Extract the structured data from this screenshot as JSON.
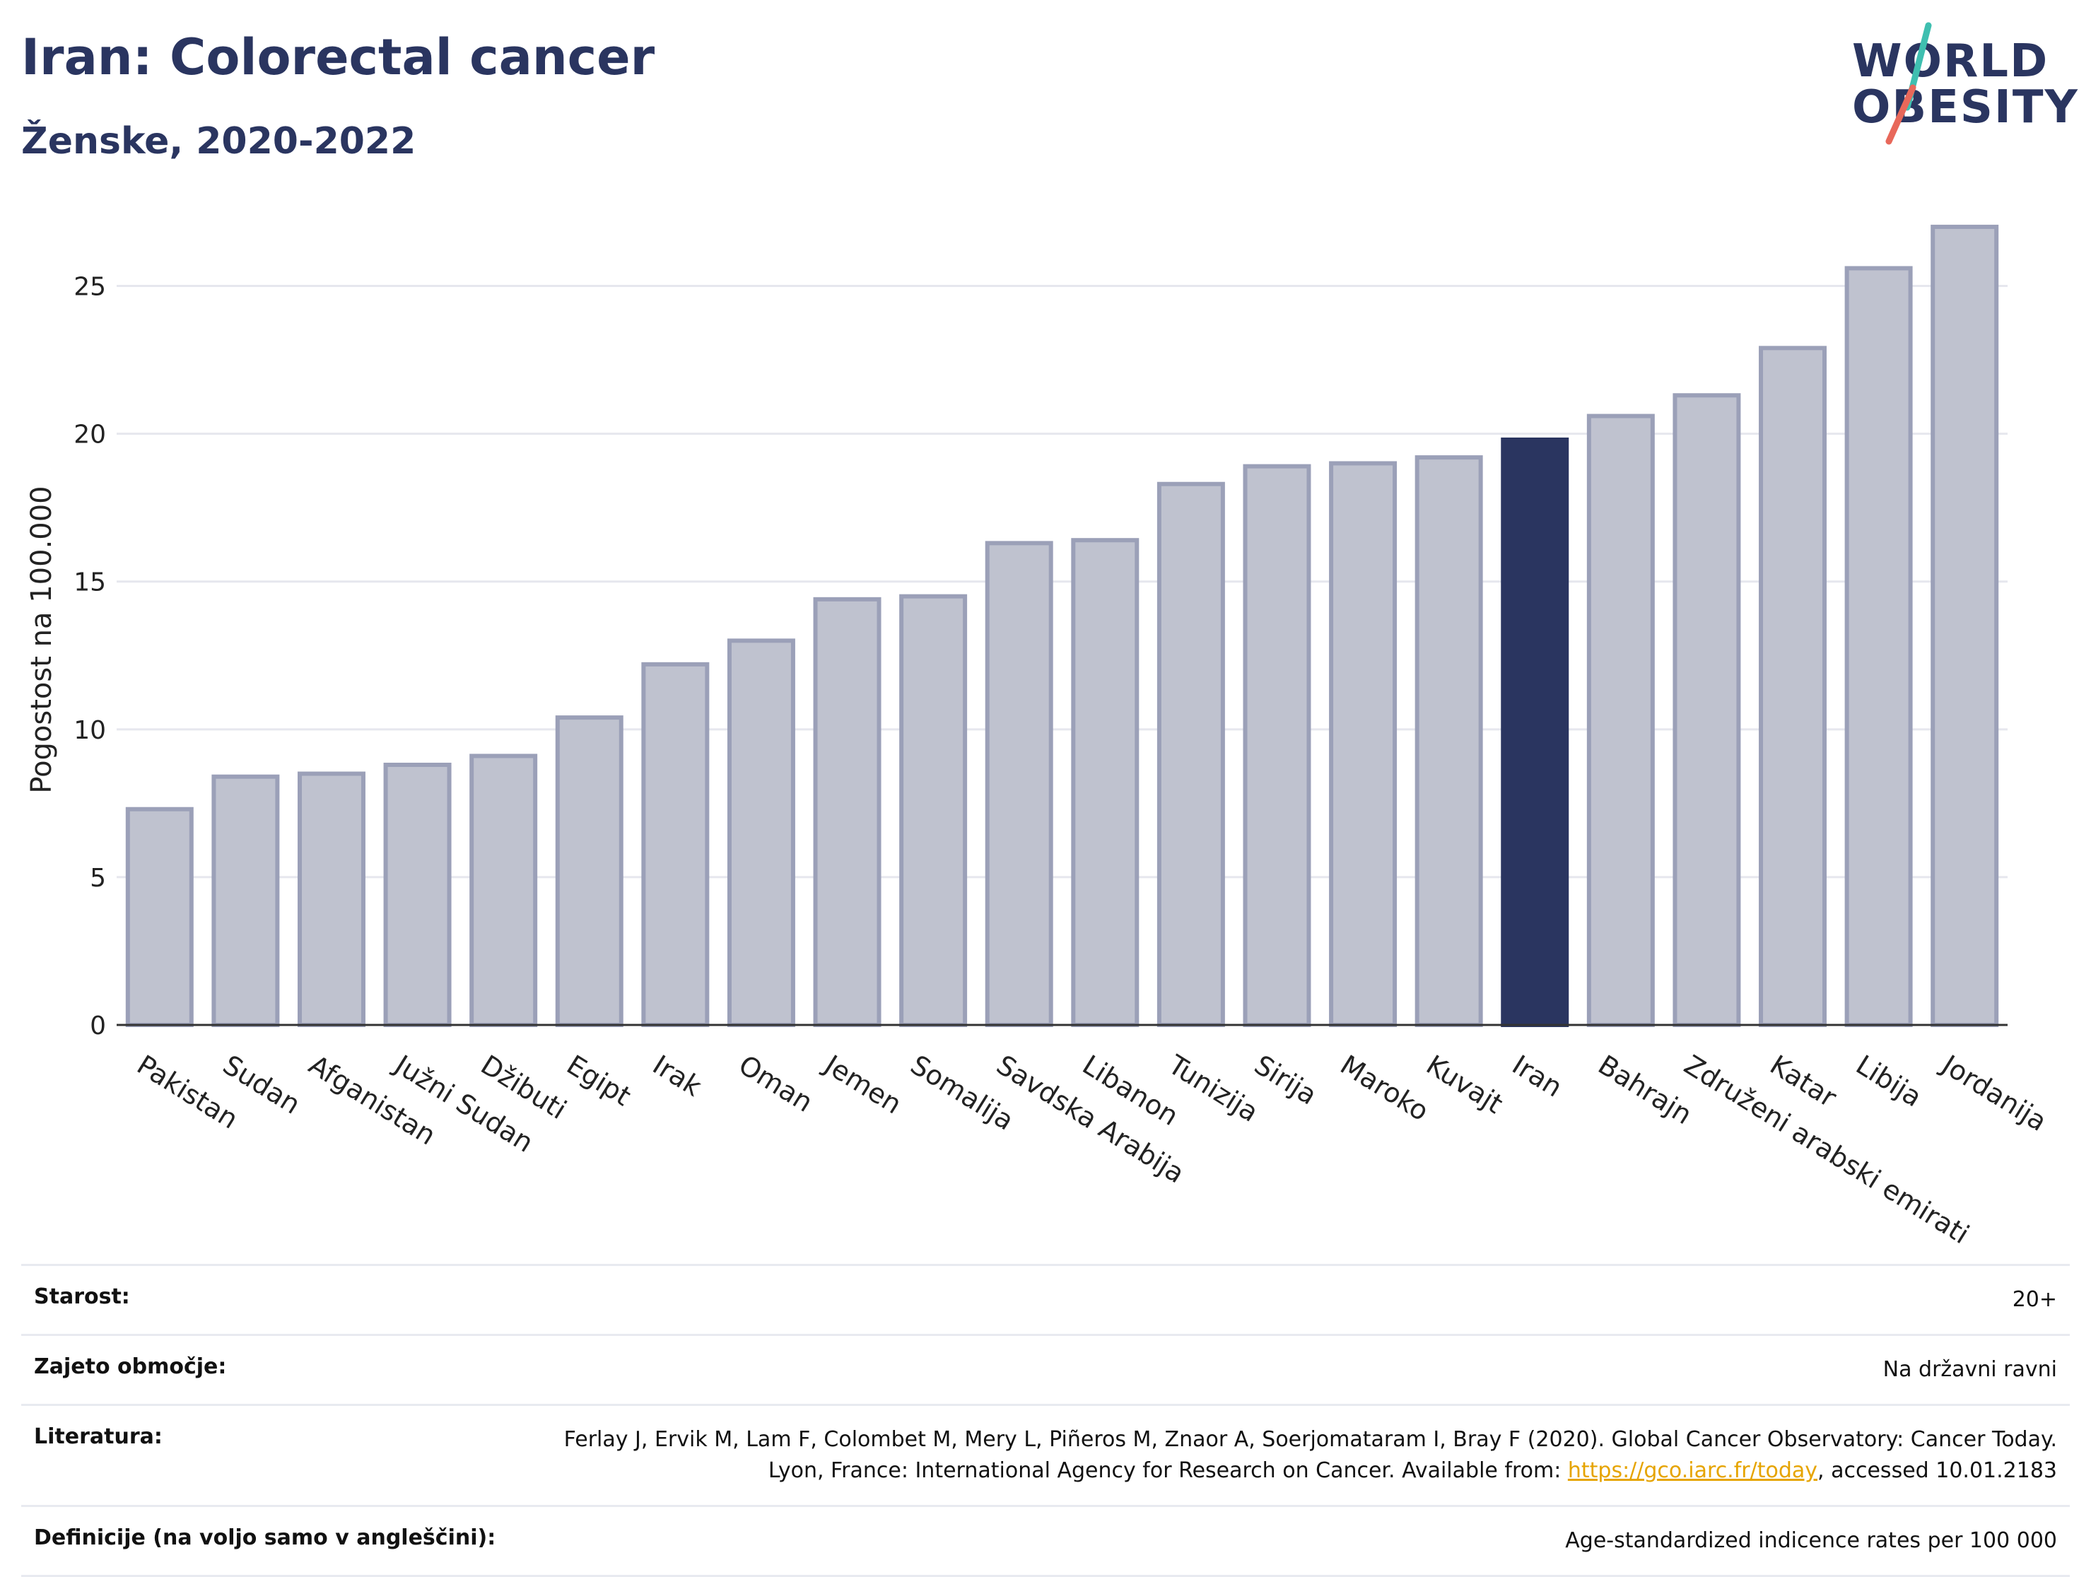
{
  "header": {
    "title": "Iran: Colorectal cancer",
    "subtitle": "Ženske, 2020-2022"
  },
  "logo": {
    "line1": "WORLD",
    "line2": "OBESITY",
    "accent_teal": "#3fbfb0",
    "accent_red": "#e8685a"
  },
  "colors": {
    "bar": "#bfc2cf",
    "bar_border": "#9ba0b8",
    "highlight": "#2a3560",
    "grid": "#e6e7ee",
    "axis": "#333333"
  },
  "chart_data": {
    "type": "bar",
    "ylabel": "Pogostost na 100.000",
    "ylim": [
      0,
      27.5
    ],
    "yticks": [
      0,
      5,
      10,
      15,
      20,
      25
    ],
    "grid": true,
    "highlight": "Iran",
    "categories": [
      "Pakistan",
      "Sudan",
      "Afganistan",
      "Južni Sudan",
      "Džibuti",
      "Egipt",
      "Irak",
      "Oman",
      "Jemen",
      "Somalija",
      "Savdska Arabija",
      "Libanon",
      "Tunizija",
      "Sirija",
      "Maroko",
      "Kuvajt",
      "Iran",
      "Bahrajn",
      "Združeni arabski emirati",
      "Katar",
      "Libija",
      "Jordanija"
    ],
    "values": [
      7.3,
      8.4,
      8.5,
      8.8,
      9.1,
      10.4,
      12.2,
      13.0,
      14.4,
      14.5,
      16.3,
      16.4,
      18.3,
      18.9,
      19.0,
      19.2,
      19.8,
      20.6,
      21.3,
      22.9,
      25.6,
      27.0
    ]
  },
  "meta": {
    "rows": [
      {
        "label": "Starost:",
        "value": "20+"
      },
      {
        "label": "Zajeto območje:",
        "value": "Na državni ravni"
      },
      {
        "label": "Literatura:",
        "value_pre": "Ferlay J, Ervik M, Lam F, Colombet M, Mery L, Piñeros M, Znaor A, Soerjomataram I, Bray F (2020). Global Cancer Observatory: Cancer Today. Lyon, France: International Agency for Research on Cancer. Available from: ",
        "link": "https://gco.iarc.fr/today",
        "value_post": ", accessed 10.01.2183"
      },
      {
        "label": "Definicije (na voljo samo v angleščini):",
        "value": "Age-standardized indicence rates per 100 000"
      }
    ]
  }
}
